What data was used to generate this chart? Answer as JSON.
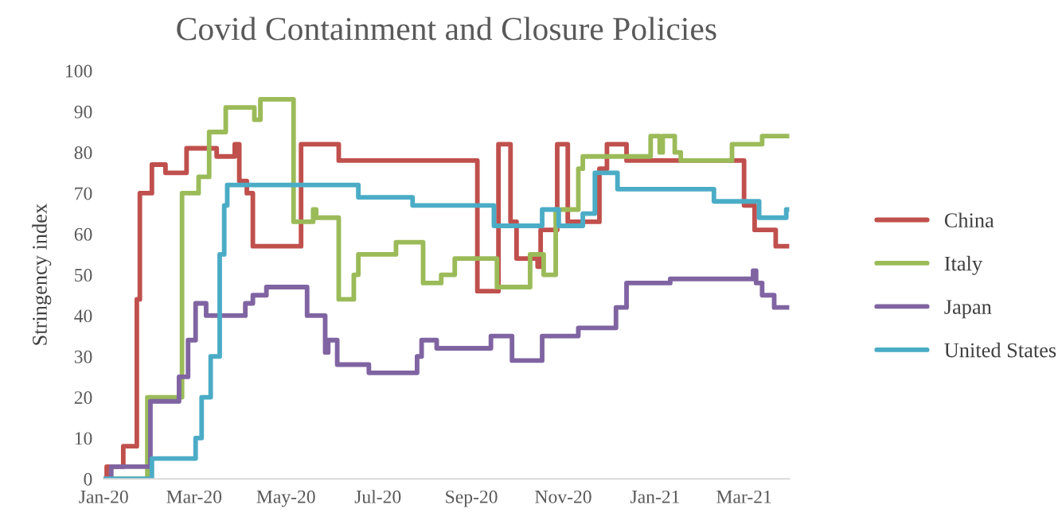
{
  "chart_data": {
    "type": "step",
    "title": "Covid Containment and Closure Policies",
    "ylabel": "Stringency index",
    "xlim": [
      "2020-01-01",
      "2021-03-31"
    ],
    "xticks": [
      {
        "value": "2020-01-01",
        "label": "Jan-20"
      },
      {
        "value": "2020-03-01",
        "label": "Mar-20"
      },
      {
        "value": "2020-05-01",
        "label": "May-20"
      },
      {
        "value": "2020-07-01",
        "label": "Jul-20"
      },
      {
        "value": "2020-09-01",
        "label": "Sep-20"
      },
      {
        "value": "2020-11-01",
        "label": "Nov-20"
      },
      {
        "value": "2021-01-01",
        "label": "Jan-21"
      },
      {
        "value": "2021-03-01",
        "label": "Mar-21"
      }
    ],
    "ylim": [
      0,
      100
    ],
    "yticks": [
      0,
      10,
      20,
      30,
      40,
      50,
      60,
      70,
      80,
      90,
      100
    ],
    "grid": false,
    "legend": "right",
    "line_style": "solid",
    "marker": "none",
    "series": [
      {
        "name": "China",
        "color": "#c0504d",
        "x": [
          "2020-01-01",
          "2020-01-03",
          "2020-01-14",
          "2020-01-23",
          "2020-01-25",
          "2020-02-02",
          "2020-02-11",
          "2020-02-25",
          "2020-03-16",
          "2020-03-28",
          "2020-03-31",
          "2020-04-05",
          "2020-04-09",
          "2020-05-11",
          "2020-06-05",
          "2020-09-05",
          "2020-09-19",
          "2020-09-27",
          "2020-10-01",
          "2020-10-15",
          "2020-10-17",
          "2020-10-28",
          "2020-11-04",
          "2020-11-25",
          "2020-11-30",
          "2020-12-13",
          "2021-03-01",
          "2021-03-08",
          "2021-03-22",
          "2021-03-31"
        ],
        "values": [
          0,
          3,
          8,
          44,
          70,
          77,
          75,
          81,
          79,
          82,
          73,
          70,
          57,
          82,
          78,
          46,
          82,
          63,
          54,
          52,
          61,
          82,
          63,
          76,
          82,
          78,
          67,
          61,
          57,
          57
        ]
      },
      {
        "name": "Italy",
        "color": "#9bbb59",
        "x": [
          "2020-01-01",
          "2020-01-30",
          "2020-02-22",
          "2020-03-04",
          "2020-03-11",
          "2020-03-22",
          "2020-04-10",
          "2020-04-14",
          "2020-05-06",
          "2020-05-19",
          "2020-05-21",
          "2020-06-05",
          "2020-06-15",
          "2020-06-18",
          "2020-07-13",
          "2020-07-31",
          "2020-08-12",
          "2020-08-21",
          "2020-09-18",
          "2020-10-10",
          "2020-10-19",
          "2020-10-27",
          "2020-11-11",
          "2020-11-14",
          "2020-12-29",
          "2021-01-04",
          "2021-01-06",
          "2021-01-14",
          "2021-01-18",
          "2021-02-21",
          "2021-03-13",
          "2021-03-31"
        ],
        "values": [
          0,
          20,
          70,
          74,
          85,
          91,
          88,
          93,
          63,
          66,
          64,
          44,
          50,
          55,
          58,
          48,
          50,
          54,
          47,
          55,
          50,
          66,
          76,
          79,
          84,
          80,
          84,
          80,
          78,
          82,
          84,
          84
        ]
      },
      {
        "name": "Japan",
        "color": "#8064a2",
        "x": [
          "2020-01-01",
          "2020-01-06",
          "2020-02-01",
          "2020-02-20",
          "2020-02-26",
          "2020-03-02",
          "2020-03-09",
          "2020-04-04",
          "2020-04-09",
          "2020-04-18",
          "2020-05-15",
          "2020-05-27",
          "2020-05-29",
          "2020-06-04",
          "2020-06-25",
          "2020-07-27",
          "2020-07-30",
          "2020-08-09",
          "2020-09-14",
          "2020-09-28",
          "2020-10-18",
          "2020-11-11",
          "2020-12-06",
          "2020-12-13",
          "2021-01-11",
          "2021-03-07",
          "2021-03-09",
          "2021-03-13",
          "2021-03-21",
          "2021-03-31"
        ],
        "values": [
          0,
          3,
          19,
          25,
          34,
          43,
          40,
          43,
          45,
          47,
          40,
          31,
          34,
          28,
          26,
          30,
          34,
          32,
          35,
          29,
          35,
          37,
          42,
          48,
          49,
          51,
          48,
          45,
          42,
          42
        ]
      },
      {
        "name": "United States",
        "color": "#4bacc6",
        "x": [
          "2020-01-01",
          "2020-02-02",
          "2020-03-02",
          "2020-03-06",
          "2020-03-12",
          "2020-03-18",
          "2020-03-21",
          "2020-03-23",
          "2020-06-18",
          "2020-07-24",
          "2020-09-16",
          "2020-10-18",
          "2020-10-29",
          "2020-11-14",
          "2020-11-22",
          "2020-12-07",
          "2021-02-09",
          "2021-03-11",
          "2021-03-29",
          "2021-03-31"
        ],
        "values": [
          0,
          5,
          10,
          20,
          30,
          55,
          67,
          72,
          69,
          67,
          62,
          66,
          62,
          65,
          75,
          71,
          68,
          64,
          66,
          66
        ]
      }
    ]
  }
}
